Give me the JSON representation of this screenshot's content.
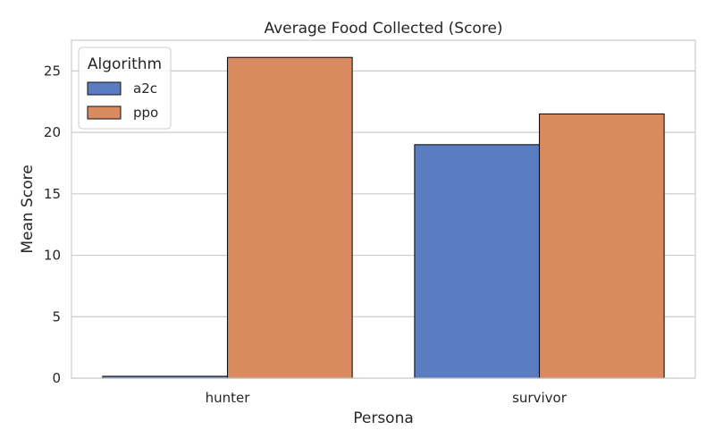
{
  "chart_data": {
    "type": "bar",
    "title": "Average Food Collected (Score)",
    "xlabel": "Persona",
    "ylabel": "Mean Score",
    "categories": [
      "hunter",
      "survivor"
    ],
    "series": [
      {
        "name": "a2c",
        "values": [
          0.15,
          19.0
        ],
        "color": "#5a7dc1"
      },
      {
        "name": "ppo",
        "values": [
          26.1,
          21.5
        ],
        "color": "#d98b5f"
      }
    ],
    "ylim": [
      0,
      27.5
    ],
    "yticks": [
      0,
      5,
      10,
      15,
      20,
      25
    ],
    "grid": true,
    "legend": {
      "title": "Algorithm",
      "placement": "top-left"
    }
  }
}
